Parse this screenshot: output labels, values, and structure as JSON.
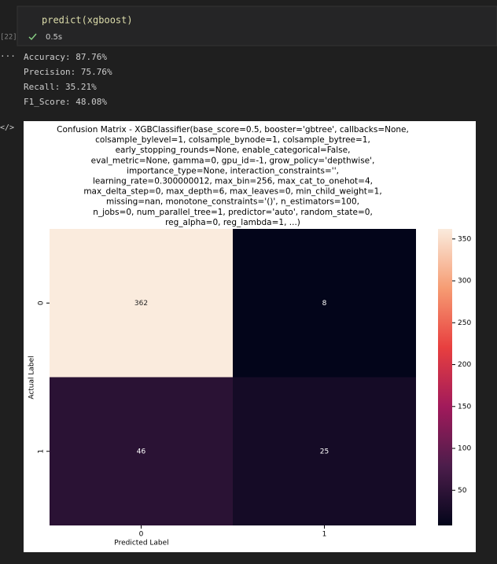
{
  "cell": {
    "execution_count": "[22]",
    "code": "predict(xgboost)",
    "status": "0.5s",
    "output_lines": [
      "Accuracy: 87.76%",
      "Precision: 75.76%",
      "Recall: 35.21%",
      "F1_Score: 48.08%"
    ]
  },
  "chart_data": {
    "type": "heatmap",
    "title": [
      "Confusion Matrix - XGBClassifier(base_score=0.5, booster='gbtree', callbacks=None,",
      "colsample_bylevel=1, colsample_bynode=1, colsample_bytree=1,",
      "early_stopping_rounds=None, enable_categorical=False,",
      "eval_metric=None, gamma=0, gpu_id=-1, grow_policy='depthwise',",
      "importance_type=None, interaction_constraints='',",
      "learning_rate=0.300000012, max_bin=256, max_cat_to_onehot=4,",
      "max_delta_step=0, max_depth=6, max_leaves=0, min_child_weight=1,",
      "missing=nan, monotone_constraints='()', n_estimators=100,",
      "n_jobs=0, num_parallel_tree=1, predictor='auto', random_state=0,",
      "reg_alpha=0, reg_lambda=1, ...)"
    ],
    "x_label": "Predicted Label",
    "y_label": "Actual Label",
    "x_categories": [
      "0",
      "1"
    ],
    "y_categories": [
      "0",
      "1"
    ],
    "values": [
      [
        362,
        8
      ],
      [
        46,
        25
      ]
    ],
    "colormap": [
      "#03051a",
      "#4c1d4b",
      "#a11a5b",
      "#e83f3f",
      "#f69c73",
      "#faebdd"
    ],
    "colorbar_ticks": [
      50,
      100,
      150,
      200,
      250,
      300,
      350
    ]
  }
}
